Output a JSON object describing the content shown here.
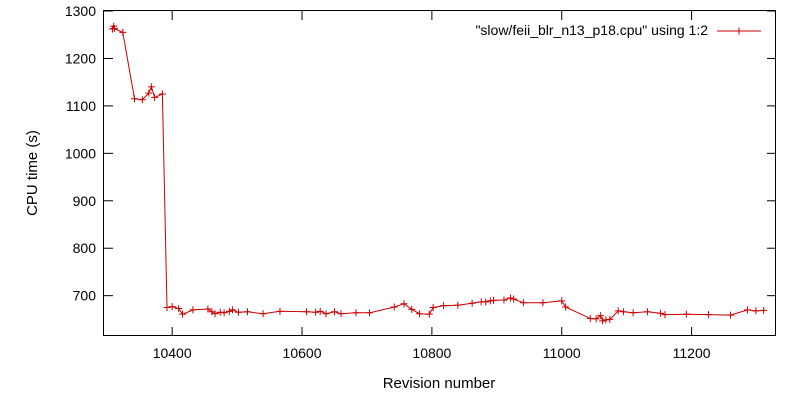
{
  "chart_data": {
    "type": "line",
    "title": "",
    "xlabel": "Revision number",
    "ylabel": "CPU time (s)",
    "xlim": [
      10295,
      10330
    ],
    "ylim": [
      615,
      1300
    ],
    "x_ticks": [
      10400,
      10600,
      10800,
      11000,
      11200
    ],
    "y_ticks": [
      700,
      800,
      900,
      1000,
      1100,
      1200,
      1300
    ],
    "grid": false,
    "legend_position": "top-right",
    "line_color": "#cc0000",
    "series": [
      {
        "name": "\"slow/feii_blr_n13_p18.cpu\" using 1:2",
        "x": [
          10308,
          10310,
          10311,
          10324,
          10342,
          10354,
          10364,
          10368,
          10373,
          10385,
          10392,
          10400,
          10410,
          10416,
          10432,
          10455,
          10461,
          10466,
          10474,
          10480,
          10488,
          10493,
          10502,
          10516,
          10540,
          10566,
          10607,
          10621,
          10628,
          10637,
          10650,
          10660,
          10683,
          10704,
          10742,
          10757,
          10769,
          10781,
          10796,
          10802,
          10818,
          10840,
          10862,
          10876,
          10883,
          10890,
          10895,
          10911,
          10921,
          10926,
          10941,
          10971,
          11000,
          11006,
          11044,
          11053,
          11060,
          11063,
          11068,
          11074,
          11087,
          11095,
          11110,
          11132,
          11152,
          11159,
          11192,
          11226,
          11260,
          11286,
          11299,
          11311
        ],
        "y": [
          1262,
          1268,
          1263,
          1255,
          1115,
          1113,
          1127,
          1140,
          1118,
          1125,
          675,
          677,
          673,
          661,
          670,
          672,
          666,
          662,
          665,
          664,
          667,
          670,
          665,
          666,
          662,
          667,
          666,
          665,
          667,
          662,
          666,
          662,
          664,
          664,
          676,
          683,
          671,
          662,
          661,
          675,
          679,
          680,
          684,
          687,
          687,
          689,
          690,
          691,
          695,
          693,
          685,
          685,
          689,
          676,
          652,
          651,
          658,
          647,
          649,
          650,
          668,
          666,
          664,
          666,
          663,
          660,
          661,
          660,
          659,
          670,
          668,
          669
        ]
      }
    ]
  }
}
